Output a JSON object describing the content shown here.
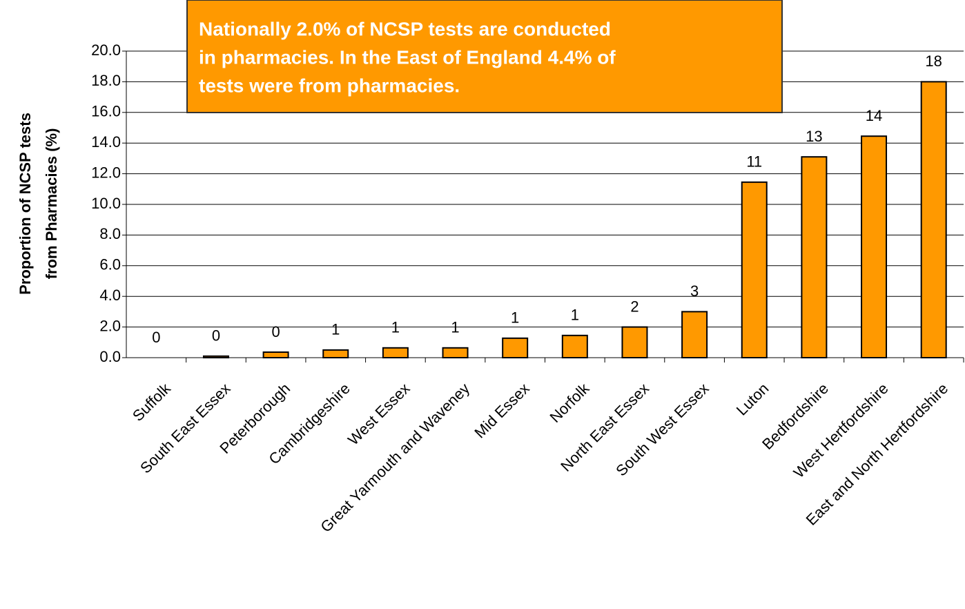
{
  "chart_data": {
    "type": "bar",
    "y_label": [
      "Proportion of NCSP tests",
      "from  Pharmacies (%)"
    ],
    "annotation": [
      "Nationally  2.0% of NCSP tests are conducted",
      "in pharmacies. In the East of England 4.4% of",
      "tests were from pharmacies."
    ],
    "categories": [
      "Suffolk",
      "South East Essex",
      "Peterborough",
      "Cambridgeshire",
      "West Essex",
      "Great Yarmouth and Waveney",
      "Mid Essex",
      "Norfolk",
      "North East Essex",
      "South West Essex",
      "Luton",
      "Bedfordshire",
      "West Hertfordshire",
      "East and North Hertfordshire"
    ],
    "values": [
      0,
      0.1,
      0.36,
      0.5,
      0.64,
      0.64,
      1.27,
      1.45,
      2.0,
      3.0,
      11.45,
      13.1,
      14.45,
      18.0
    ],
    "value_labels": [
      "0",
      "0",
      "0",
      "1",
      "1",
      "1",
      "1",
      "1",
      "2",
      "3",
      "11",
      "13",
      "14",
      "18"
    ],
    "color": "#ff9900",
    "ylim": [
      0,
      20
    ],
    "yticks": [
      {
        "value": 0,
        "label": "0.0"
      },
      {
        "value": 2,
        "label": "2.0"
      },
      {
        "value": 4,
        "label": "4.0"
      },
      {
        "value": 6,
        "label": "6.0"
      },
      {
        "value": 8,
        "label": "8.0"
      },
      {
        "value": 10,
        "label": "10.0"
      },
      {
        "value": 12,
        "label": "12.0"
      },
      {
        "value": 14,
        "label": "14.0"
      },
      {
        "value": 16,
        "label": "16.0"
      },
      {
        "value": 18,
        "label": "18.0"
      },
      {
        "value": 20,
        "label": "20.0"
      }
    ],
    "grid": true
  }
}
